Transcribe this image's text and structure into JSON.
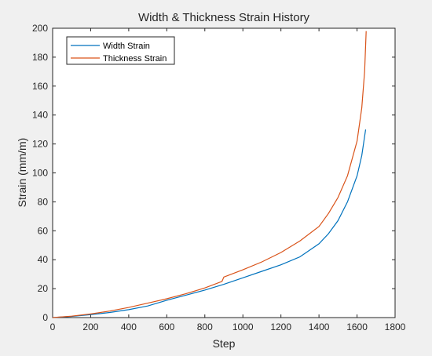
{
  "chart_data": {
    "type": "line",
    "title": "Width & Thickness Strain History",
    "xlabel": "Step",
    "ylabel": "Strain (mm/m)",
    "xlim": [
      0,
      1800
    ],
    "ylim": [
      0,
      200
    ],
    "xticks": [
      0,
      200,
      400,
      600,
      800,
      1000,
      1200,
      1400,
      1600,
      1800
    ],
    "yticks": [
      0,
      20,
      40,
      60,
      80,
      100,
      120,
      140,
      160,
      180,
      200
    ],
    "grid": false,
    "legend_position": "top-left",
    "series": [
      {
        "name": "Width Strain",
        "color": "#0072bd",
        "x": [
          0,
          100,
          200,
          300,
          400,
          500,
          600,
          700,
          800,
          900,
          1000,
          1100,
          1200,
          1300,
          1400,
          1450,
          1500,
          1550,
          1600,
          1625,
          1645
        ],
        "y": [
          0,
          0.8,
          2,
          3.5,
          5.5,
          8,
          12,
          15.5,
          19,
          23,
          27.5,
          32,
          36.5,
          42,
          51,
          58,
          67,
          80,
          98,
          112,
          130
        ]
      },
      {
        "name": "Thickness Strain",
        "color": "#d95319",
        "x": [
          0,
          100,
          200,
          300,
          400,
          500,
          600,
          700,
          800,
          890,
          900,
          1000,
          1100,
          1200,
          1300,
          1400,
          1450,
          1500,
          1550,
          1600,
          1625,
          1640,
          1648
        ],
        "y": [
          0,
          1,
          2.5,
          4.5,
          7,
          10,
          13,
          16.5,
          20.5,
          25,
          28,
          33,
          38.5,
          45,
          53,
          63,
          72,
          83,
          98,
          122,
          145,
          170,
          198
        ]
      }
    ]
  }
}
